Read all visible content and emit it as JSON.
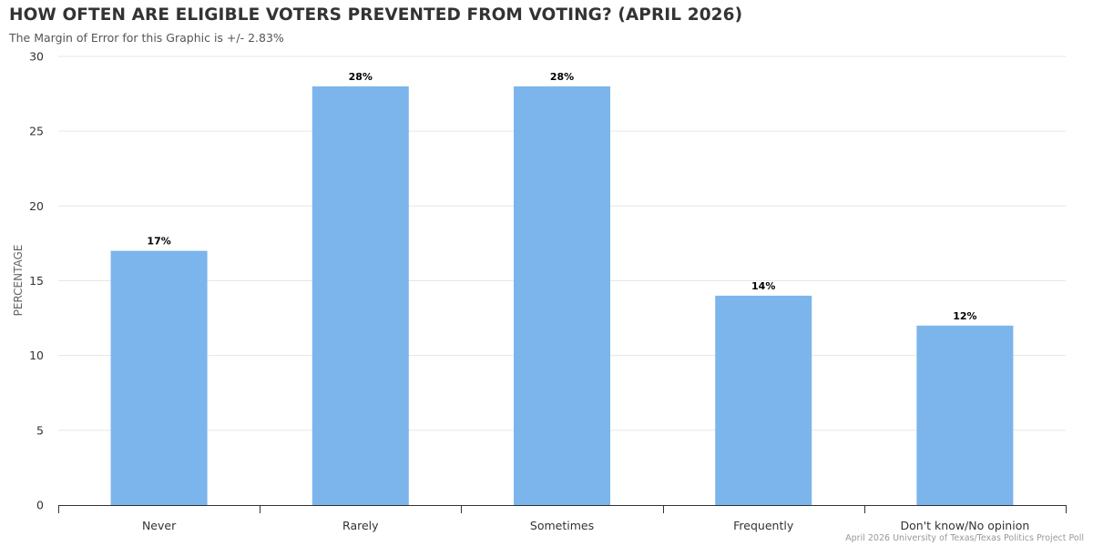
{
  "colors": {
    "bar": "#7cb5ec",
    "title": "#333333",
    "grid": "#e6e6e6"
  },
  "chart_data": {
    "type": "bar",
    "title": "HOW OFTEN ARE ELIGIBLE VOTERS PREVENTED FROM VOTING? (APRIL 2026)",
    "subtitle": "The Margin of Error for this Graphic is +/- 2.83%",
    "xlabel": "",
    "ylabel": "PERCENTAGE",
    "categories": [
      "Never",
      "Rarely",
      "Sometimes",
      "Frequently",
      "Don't know/No opinion"
    ],
    "values": [
      17,
      28,
      28,
      14,
      12
    ],
    "data_labels": [
      "17%",
      "28%",
      "28%",
      "14%",
      "12%"
    ],
    "ylim": [
      0,
      30
    ],
    "yticks": [
      0,
      5,
      10,
      15,
      20,
      25,
      30
    ],
    "grid": true,
    "legend": "none",
    "credit": "April 2026 University of Texas/Texas Politics Project Poll"
  }
}
